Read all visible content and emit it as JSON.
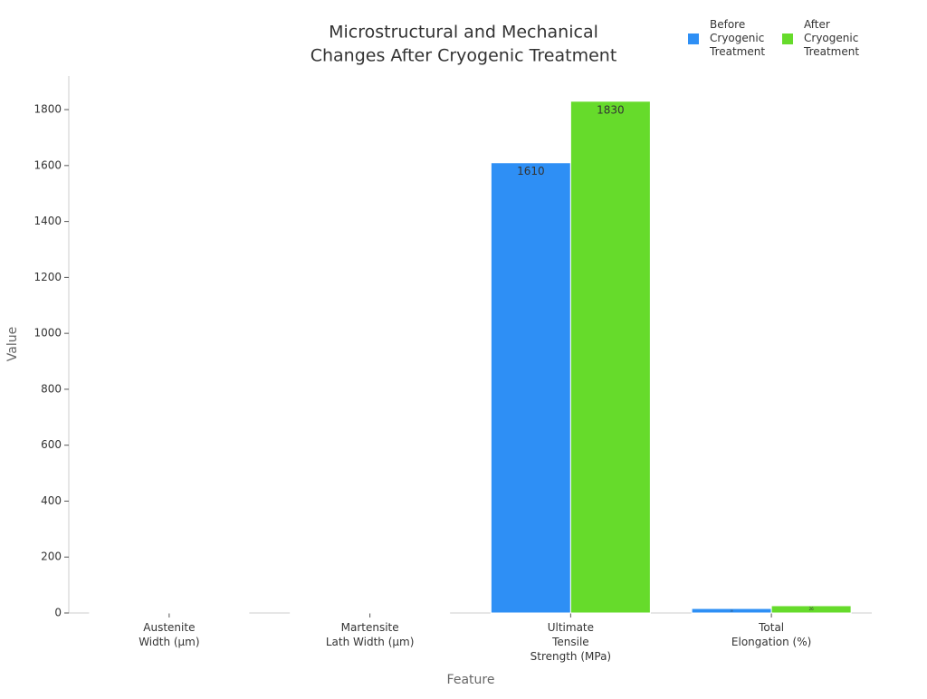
{
  "chart_data": {
    "type": "bar",
    "title": [
      "Microstructural and Mechanical",
      "Changes After Cryogenic Treatment"
    ],
    "x_label": "Feature",
    "y_label": "Value",
    "categories": [
      [
        "Austenite",
        "Width (μm)"
      ],
      [
        "Martensite",
        "Lath Width (μm)"
      ],
      [
        "Ultimate",
        "Tensile",
        "Strength (MPa)"
      ],
      [
        "Total",
        "Elongation (%)"
      ]
    ],
    "series": [
      {
        "name": "Before Cryogenic Treatment",
        "color": "#2e8ff5",
        "values": [
          0.2,
          0.3,
          1610,
          16
        ]
      },
      {
        "name": "After Cryogenic Treatment",
        "color": "#66db2b",
        "values": [
          0.1,
          0.2,
          1830,
          26
        ]
      }
    ],
    "ylim": [
      0,
      1920
    ],
    "yticks": [
      0,
      200,
      400,
      600,
      800,
      1000,
      1200,
      1400,
      1600,
      1800
    ],
    "legend": "top-right"
  }
}
